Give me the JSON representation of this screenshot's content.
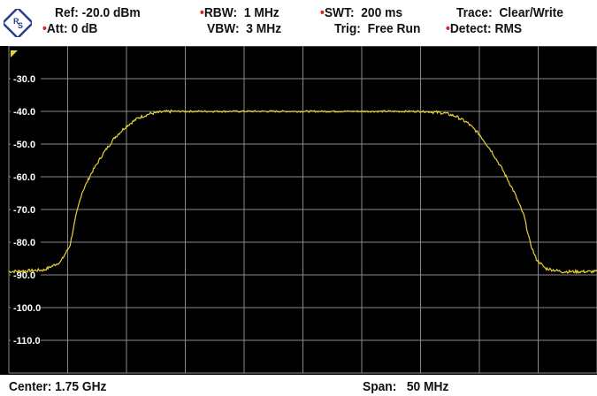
{
  "header": {
    "ref_label": "Ref:",
    "ref_value": "-20.0 dBm",
    "att_label": "Att:",
    "att_value": "0 dB",
    "rbw_label": "RBW:",
    "rbw_value": "1 MHz",
    "vbw_label": "VBW:",
    "vbw_value": "3 MHz",
    "swt_label": "SWT:",
    "swt_value": "200 ms",
    "trig_label": "Trig:",
    "trig_value": "Free Run",
    "trace_label": "Trace:",
    "trace_value": "Clear/Write",
    "detect_label": "Detect:",
    "detect_value": "RMS"
  },
  "footer": {
    "center_label": "Center:",
    "center_value": "1.75 GHz",
    "span_label": "Span:",
    "span_value": "50 MHz"
  },
  "colors": {
    "background": "#000000",
    "grid": "#8a8a8a",
    "trace": "#e8d23a",
    "marker_dot": "#e02020"
  },
  "chart_data": {
    "type": "line",
    "title": "",
    "xlabel": "",
    "ylabel": "",
    "xlim": [
      -25,
      25
    ],
    "ylim": [
      -120,
      -20
    ],
    "y_ticks": [
      "-30.0",
      "-40.0",
      "-50.0",
      "-60.0",
      "-70.0",
      "-80.0",
      "-90.0",
      "-100.0",
      "-110.0"
    ],
    "y_tick_values": [
      -30,
      -40,
      -50,
      -60,
      -70,
      -80,
      -90,
      -100,
      -110
    ],
    "grid": true,
    "series": [
      {
        "x": [
          -25,
          -22,
          -20.6,
          -19.8,
          -19.3,
          -18.8,
          -18,
          -17,
          -16,
          -15,
          -14,
          -13,
          -12,
          -11,
          -10,
          0,
          10,
          11,
          12,
          13,
          14,
          15,
          16,
          17,
          18,
          18.8,
          19.3,
          19.8,
          20.6,
          22,
          25
        ],
        "values": [
          -89,
          -88.5,
          -86,
          -81,
          -72,
          -65,
          -59,
          -53,
          -48,
          -44.5,
          -42,
          -40.7,
          -40.2,
          -40,
          -40,
          -40,
          -40,
          -40.2,
          -40.5,
          -41.5,
          -43.5,
          -47,
          -52,
          -58,
          -65,
          -72,
          -80,
          -85,
          -88,
          -89,
          -89
        ]
      }
    ]
  }
}
